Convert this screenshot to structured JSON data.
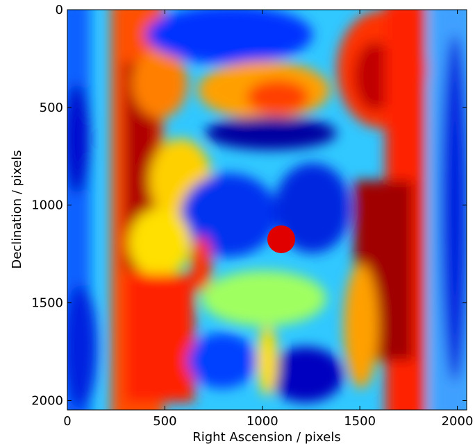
{
  "chart_data": {
    "type": "heatmap",
    "xlabel": "Right Ascension / pixels",
    "ylabel": "Declination / pixels",
    "xlim": [
      0,
      2048
    ],
    "ylim": [
      2048,
      0
    ],
    "xticks": [
      0,
      500,
      1000,
      1500,
      2000
    ],
    "yticks": [
      0,
      500,
      1000,
      1500,
      2000
    ],
    "colormap": "jet"
  }
}
